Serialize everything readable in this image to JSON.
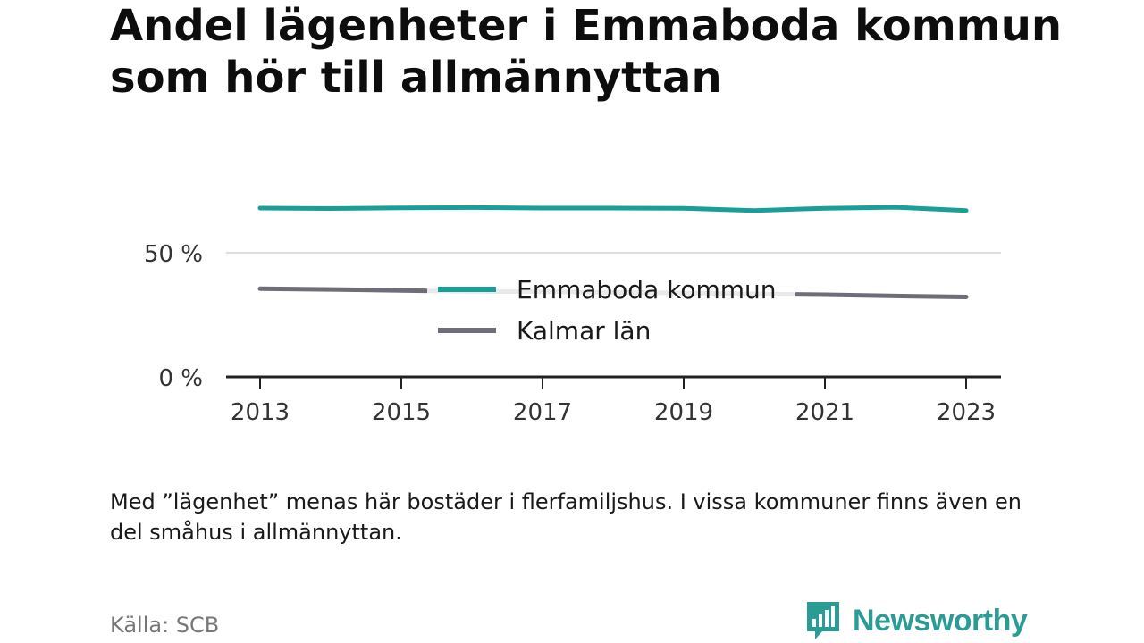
{
  "title": "Andel lägenheter i Emmaboda kommun som hör till allmännyttan",
  "note": "Med ”lägenhet” menas här bostäder i flerfamiljshus. I vissa kommuner finns även en del småhus i allmännyttan.",
  "source": "Källa: SCB",
  "brand": {
    "name": "Newsworthy",
    "logo_icon": "bar-chart-speech-bubble-icon"
  },
  "colors": {
    "emmaboda": "#1a9e98",
    "kalmar": "#6e6e78",
    "grid": "#dddddd",
    "axis": "#222222",
    "brand": "#2a9c95"
  },
  "chart_data": {
    "type": "line",
    "x": [
      2013,
      2014,
      2015,
      2016,
      2017,
      2018,
      2019,
      2020,
      2021,
      2022,
      2023
    ],
    "xticks": [
      "2013",
      "2015",
      "2017",
      "2019",
      "2021",
      "2023"
    ],
    "yticks": [
      {
        "value": 0,
        "label": "0 %"
      },
      {
        "value": 50,
        "label": "50 %"
      }
    ],
    "ylim": [
      0,
      80
    ],
    "grid": true,
    "legend_position": "center",
    "series": [
      {
        "name": "Emmaboda kommun",
        "color": "#1a9e98",
        "values": [
          68.0,
          67.8,
          68.1,
          68.2,
          68.0,
          68.0,
          67.9,
          67.0,
          67.9,
          68.3,
          67.0
        ]
      },
      {
        "name": "Kalmar län",
        "color": "#6e6e78",
        "values": [
          35.5,
          35.2,
          34.8,
          34.4,
          34.3,
          34.0,
          33.8,
          33.4,
          33.1,
          32.6,
          32.2
        ]
      }
    ]
  }
}
